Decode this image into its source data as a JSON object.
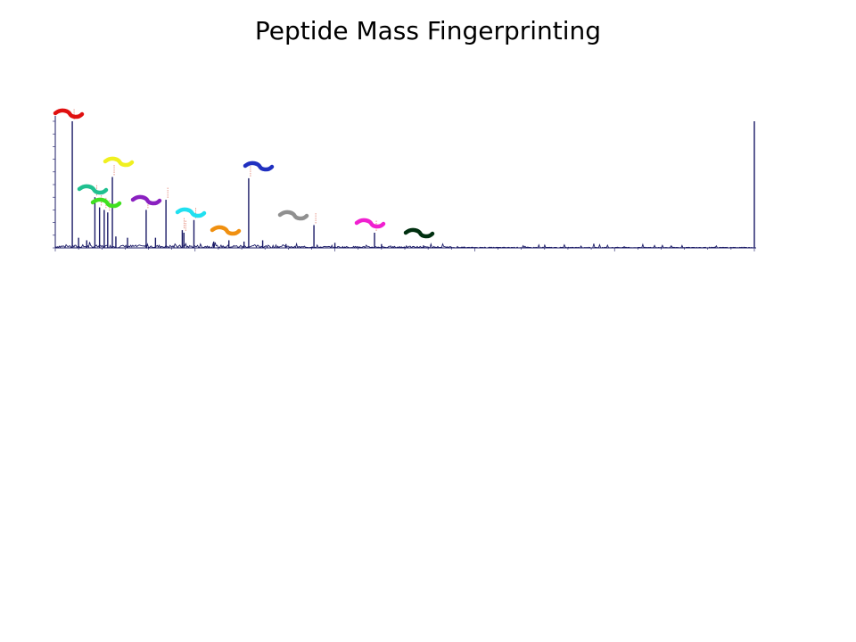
{
  "slide": {
    "title": "Peptide Mass Fingerprinting"
  },
  "chart_data": {
    "type": "line",
    "title": "",
    "xlabel": "",
    "ylabel": "",
    "xlim": [
      800,
      3800
    ],
    "ylim": [
      0,
      100
    ],
    "grid": false,
    "line_color": "#1a1a66",
    "peaks": [
      {
        "x": 873,
        "y": 100
      },
      {
        "x": 900,
        "y": 8
      },
      {
        "x": 935,
        "y": 6
      },
      {
        "x": 970,
        "y": 40
      },
      {
        "x": 990,
        "y": 32
      },
      {
        "x": 1010,
        "y": 30
      },
      {
        "x": 1025,
        "y": 28
      },
      {
        "x": 1045,
        "y": 56
      },
      {
        "x": 1060,
        "y": 9
      },
      {
        "x": 1110,
        "y": 8
      },
      {
        "x": 1190,
        "y": 30
      },
      {
        "x": 1230,
        "y": 8
      },
      {
        "x": 1275,
        "y": 38
      },
      {
        "x": 1345,
        "y": 14
      },
      {
        "x": 1352,
        "y": 12
      },
      {
        "x": 1395,
        "y": 22
      },
      {
        "x": 1480,
        "y": 5
      },
      {
        "x": 1545,
        "y": 6
      },
      {
        "x": 1610,
        "y": 5
      },
      {
        "x": 1630,
        "y": 55
      },
      {
        "x": 1690,
        "y": 6
      },
      {
        "x": 1790,
        "y": 3
      },
      {
        "x": 1910,
        "y": 18
      },
      {
        "x": 2000,
        "y": 4
      },
      {
        "x": 2170,
        "y": 12
      },
      {
        "x": 2200,
        "y": 3
      },
      {
        "x": 2380,
        "y": 2
      },
      {
        "x": 3800,
        "y": 100
      }
    ],
    "markers": [
      {
        "color": "#e01010",
        "peak_x": 873
      },
      {
        "color": "#20c090",
        "peak_x": 970
      },
      {
        "color": "#40e020",
        "peak_x": 1000
      },
      {
        "color": "#f0f020",
        "peak_x": 1045
      },
      {
        "color": "#8a20c0",
        "peak_x": 1190
      },
      {
        "color": "#20e0f0",
        "peak_x": 1395
      },
      {
        "color": "#f09010",
        "peak_x": 1545
      },
      {
        "color": "#2030c0",
        "peak_x": 1630
      },
      {
        "color": "#909090",
        "peak_x": 1910
      },
      {
        "color": "#f020d0",
        "peak_x": 2170
      },
      {
        "color": "#003010",
        "peak_x": 2380
      }
    ]
  }
}
